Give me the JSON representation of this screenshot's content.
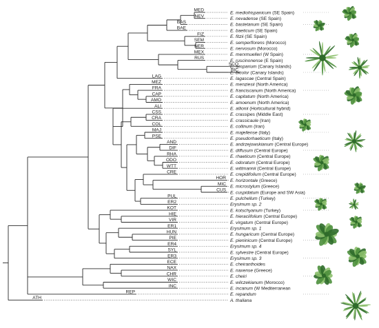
{
  "taxa": [
    {
      "abbr": "MED",
      "name": "E. mediohispanicum",
      "note": "(SE Spain)"
    },
    {
      "abbr": "NEV",
      "name": "E. nevadense",
      "note": "(SE Spain)"
    },
    {
      "abbr": "BAS",
      "name": "E. bastetanum",
      "note": "(SE Spain)"
    },
    {
      "abbr": "BAE",
      "name": "E. baeticum",
      "note": "(SE Spain)"
    },
    {
      "abbr": "FIZ",
      "name": "E. fitzii",
      "note": "(SE Spain)"
    },
    {
      "abbr": "SEM",
      "name": "E. semperflorens",
      "note": "(Morocco)"
    },
    {
      "abbr": "NER",
      "name": "E. nervosum",
      "note": "(Morocco)"
    },
    {
      "abbr": "MEX",
      "name": "E. merxmuelleri",
      "note": "(W Spain)"
    },
    {
      "abbr": "RUS",
      "name": "E. ruscinonense",
      "note": "(E Spain)"
    },
    {
      "abbr": "SCO",
      "name": "E. scoparium",
      "note": "(Canary Islands)"
    },
    {
      "abbr": "BIC",
      "name": "E. bicolor",
      "note": "(Canary Islands)"
    },
    {
      "abbr": "LAG",
      "name": "E. lagascae",
      "note": "(Central Spain)"
    },
    {
      "abbr": "MEZ",
      "name": "E. menziesii",
      "note": "(North America)"
    },
    {
      "abbr": "FRA",
      "name": "E. franciscanum",
      "note": "(North America)"
    },
    {
      "abbr": "CAP",
      "name": "E. capitatum",
      "note": "(North America)"
    },
    {
      "abbr": "AMO",
      "name": "E. amoenum",
      "note": "(North America)"
    },
    {
      "abbr": "ALI",
      "name": "E. allionii",
      "note": "(Horticultural hybrid)"
    },
    {
      "abbr": "CSS",
      "name": "E. crassipes",
      "note": "(Middle East)"
    },
    {
      "abbr": "CRA",
      "name": "E. crassicaule",
      "note": "(Iran)"
    },
    {
      "abbr": "COL",
      "name": "E. collinum",
      "note": "(Iran)"
    },
    {
      "abbr": "MAJ",
      "name": "E. majellense",
      "note": "(Italy)"
    },
    {
      "abbr": "PSE",
      "name": "E. pseudorhaeticum",
      "note": "(Italy)"
    },
    {
      "abbr": "AND",
      "name": "E. andrzejowskianum",
      "note": "(Central Europe)"
    },
    {
      "abbr": "DIF",
      "name": "E. diffusum",
      "note": "(Central Europe)"
    },
    {
      "abbr": "RHA",
      "name": "E. rhaeticum",
      "note": "(Central Europe)"
    },
    {
      "abbr": "ODO",
      "name": "E. odoratum",
      "note": "(Central Europe)"
    },
    {
      "abbr": "WTT",
      "name": "E. wittmannii",
      "note": "(Central Europe)"
    },
    {
      "abbr": "CRE",
      "name": "E. crepidifolium",
      "note": "(Central Europe)"
    },
    {
      "abbr": "HOR",
      "name": "E. horizontale",
      "note": "(Greece)"
    },
    {
      "abbr": "MIC",
      "name": "E. microstylum",
      "note": "(Greece)"
    },
    {
      "abbr": "CUS",
      "name": "E. cuspidatum",
      "note": "(Europe and SW Asia)"
    },
    {
      "abbr": "PUL",
      "name": "E. pulchellum",
      "note": "(Turkey)"
    },
    {
      "abbr": "ER2",
      "name": "Erysimum sp. 2",
      "note": ""
    },
    {
      "abbr": "KOT",
      "name": "E. kotschyanum",
      "note": "(Turkey)"
    },
    {
      "abbr": "HIE",
      "name": "E. hieraciifolium",
      "note": "(Central Europe)"
    },
    {
      "abbr": "VIR",
      "name": "E. virgatum",
      "note": "(Central Europe)"
    },
    {
      "abbr": "ER1",
      "name": "Erysimum sp. 1",
      "note": ""
    },
    {
      "abbr": "HUN",
      "name": "E. hungaricum",
      "note": "(Central Europe)"
    },
    {
      "abbr": "PIE",
      "name": "E. pieninicum",
      "note": "(Central Europe)"
    },
    {
      "abbr": "ER4",
      "name": "Erysimum sp. 4",
      "note": ""
    },
    {
      "abbr": "SYL",
      "name": "E. sylvestre",
      "note": "(Central Europe)"
    },
    {
      "abbr": "ER3",
      "name": "Erysimum sp. 3",
      "note": ""
    },
    {
      "abbr": "ECE",
      "name": "E. cheiranthoides",
      "note": ""
    },
    {
      "abbr": "NAX",
      "name": "E. naxense",
      "note": "(Greece)"
    },
    {
      "abbr": "CHR",
      "name": "E. cheiri",
      "note": ""
    },
    {
      "abbr": "WIC",
      "name": "E. wilczekianum",
      "note": "(Morocco)"
    },
    {
      "abbr": "INC",
      "name": "E. incanum",
      "note": "(W Mediterranean"
    },
    {
      "abbr": "REP",
      "name": "E. repandum",
      "note": ""
    },
    {
      "abbr": "ATH",
      "name": "A. thaliana",
      "note": ""
    }
  ],
  "colors": {
    "branch": "#2a2a2a",
    "text": "#1a1a1a",
    "plant_dark": "#2f6b2a",
    "plant_mid": "#4c8f3c",
    "plant_light": "#8cbf6c"
  }
}
